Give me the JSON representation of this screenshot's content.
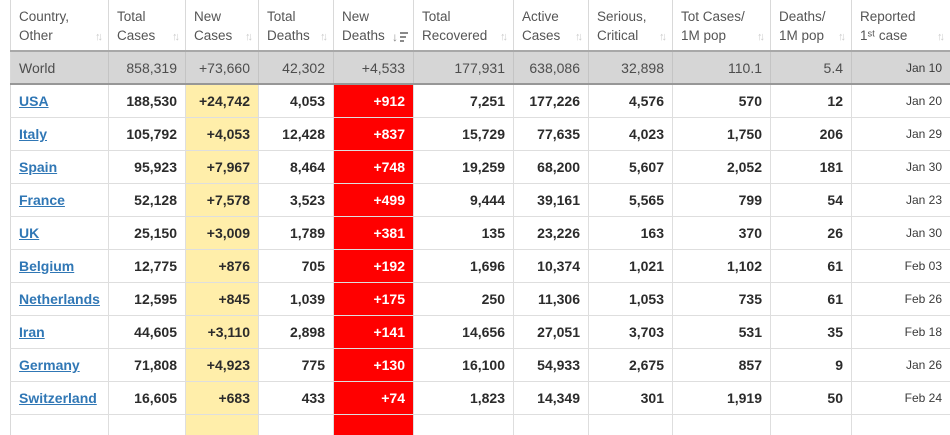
{
  "colors": {
    "highlight_yellow": "#FFEEAA",
    "highlight_red": "#FF0000",
    "link_blue": "#3077B5",
    "world_row_bg": "#D6D6D6"
  },
  "table": {
    "columns": [
      {
        "key": "country",
        "label_lines": [
          "Country,",
          "Other"
        ],
        "sort": "both"
      },
      {
        "key": "total-cases",
        "label_lines": [
          "Total",
          "Cases"
        ],
        "sort": "both"
      },
      {
        "key": "new-cases",
        "label_lines": [
          "New",
          "Cases"
        ],
        "sort": "both"
      },
      {
        "key": "total-deaths",
        "label_lines": [
          "Total",
          "Deaths"
        ],
        "sort": "both"
      },
      {
        "key": "new-deaths",
        "label_lines": [
          "New",
          "Deaths"
        ],
        "sort": "desc"
      },
      {
        "key": "total-recovered",
        "label_lines": [
          "Total",
          "Recovered"
        ],
        "sort": "both"
      },
      {
        "key": "active-cases",
        "label_lines": [
          "Active",
          "Cases"
        ],
        "sort": "both"
      },
      {
        "key": "serious-critical",
        "label_lines": [
          "Serious,",
          "Critical"
        ],
        "sort": "both"
      },
      {
        "key": "cases-per-1m",
        "label_lines": [
          "Tot Cases/",
          "1M pop"
        ],
        "sort": "both"
      },
      {
        "key": "deaths-per-1m",
        "label_lines": [
          "Deaths/",
          "1M pop"
        ],
        "sort": "both"
      },
      {
        "key": "first-case",
        "label_lines": [
          "Reported",
          "1ˢᵗ case"
        ],
        "sort": "both"
      }
    ],
    "rows": [
      {
        "country": "World",
        "is_world": true,
        "link": false,
        "values": [
          "858,319",
          "+73,660",
          "42,302",
          "+4,533",
          "177,931",
          "638,086",
          "32,898",
          "110.1",
          "5.4",
          "Jan 10"
        ]
      },
      {
        "country": "USA",
        "link": true,
        "values": [
          "188,530",
          "+24,742",
          "4,053",
          "+912",
          "7,251",
          "177,226",
          "4,576",
          "570",
          "12",
          "Jan 20"
        ]
      },
      {
        "country": "Italy",
        "link": true,
        "values": [
          "105,792",
          "+4,053",
          "12,428",
          "+837",
          "15,729",
          "77,635",
          "4,023",
          "1,750",
          "206",
          "Jan 29"
        ]
      },
      {
        "country": "Spain",
        "link": true,
        "values": [
          "95,923",
          "+7,967",
          "8,464",
          "+748",
          "19,259",
          "68,200",
          "5,607",
          "2,052",
          "181",
          "Jan 30"
        ]
      },
      {
        "country": "France",
        "link": true,
        "values": [
          "52,128",
          "+7,578",
          "3,523",
          "+499",
          "9,444",
          "39,161",
          "5,565",
          "799",
          "54",
          "Jan 23"
        ]
      },
      {
        "country": "UK",
        "link": true,
        "values": [
          "25,150",
          "+3,009",
          "1,789",
          "+381",
          "135",
          "23,226",
          "163",
          "370",
          "26",
          "Jan 30"
        ]
      },
      {
        "country": "Belgium",
        "link": true,
        "values": [
          "12,775",
          "+876",
          "705",
          "+192",
          "1,696",
          "10,374",
          "1,021",
          "1,102",
          "61",
          "Feb 03"
        ]
      },
      {
        "country": "Netherlands",
        "link": true,
        "values": [
          "12,595",
          "+845",
          "1,039",
          "+175",
          "250",
          "11,306",
          "1,053",
          "735",
          "61",
          "Feb 26"
        ]
      },
      {
        "country": "Iran",
        "link": true,
        "values": [
          "44,605",
          "+3,110",
          "2,898",
          "+141",
          "14,656",
          "27,051",
          "3,703",
          "531",
          "35",
          "Feb 18"
        ]
      },
      {
        "country": "Germany",
        "link": true,
        "values": [
          "71,808",
          "+4,923",
          "775",
          "+130",
          "16,100",
          "54,933",
          "2,675",
          "857",
          "9",
          "Jan 26"
        ]
      },
      {
        "country": "Switzerland",
        "link": true,
        "values": [
          "16,605",
          "+683",
          "433",
          "+74",
          "1,823",
          "14,349",
          "301",
          "1,919",
          "50",
          "Feb 24"
        ]
      },
      {
        "country": "",
        "partial": true,
        "link": false,
        "values": [
          "",
          "",
          "",
          "",
          "",
          "",
          "",
          "",
          "",
          ""
        ]
      }
    ]
  }
}
